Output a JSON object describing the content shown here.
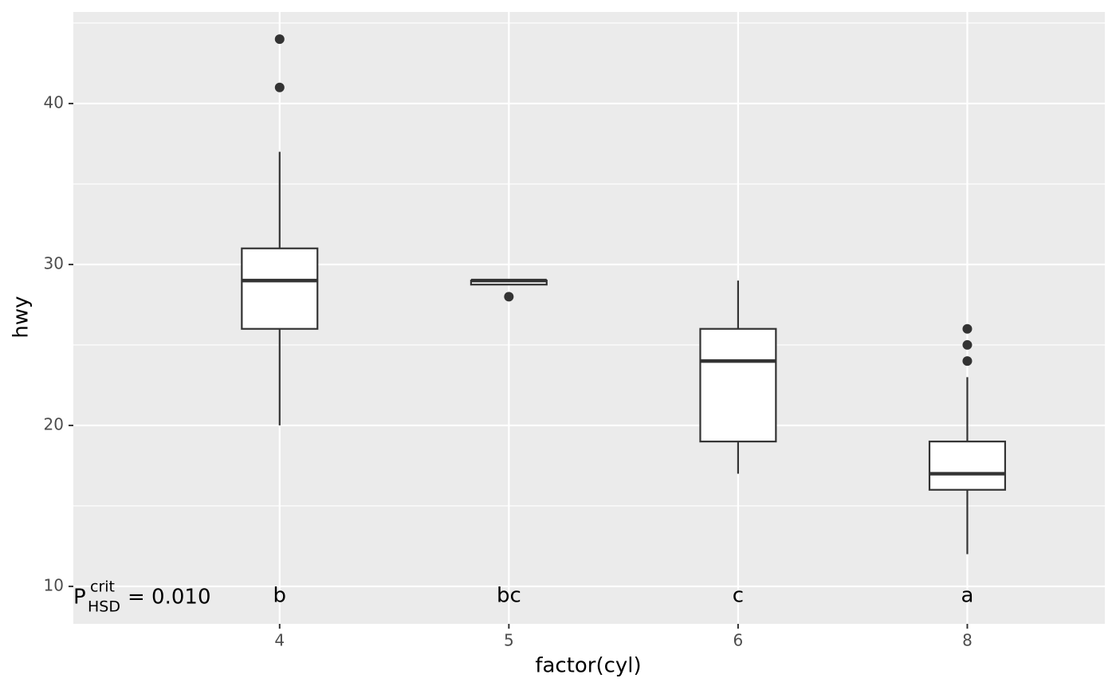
{
  "chart_data": {
    "type": "boxplot",
    "x_label": "factor(cyl)",
    "y_label": "hwy",
    "categories": [
      "4",
      "5",
      "6",
      "8"
    ],
    "boxes": [
      {
        "lower": 20,
        "q1": 26,
        "median": 29,
        "q3": 31,
        "upper": 37,
        "outliers": [
          41,
          44
        ]
      },
      {
        "lower": 29,
        "q1": 28.75,
        "median": 29,
        "q3": 29,
        "upper": 29,
        "outliers": [
          28
        ]
      },
      {
        "lower": 17,
        "q1": 19,
        "median": 24,
        "q3": 26,
        "upper": 29,
        "outliers": []
      },
      {
        "lower": 12,
        "q1": 16,
        "median": 17,
        "q3": 19,
        "upper": 23,
        "outliers": [
          24,
          25,
          26
        ]
      }
    ],
    "group_letters": [
      "b",
      "bc",
      "c",
      "a"
    ],
    "annotation": {
      "symbol": "P",
      "superscript": "crit",
      "subscript": "HSD",
      "text": "= 0.010"
    },
    "ylim": [
      7.67,
      45.69
    ],
    "yticks": [
      10,
      20,
      30,
      40
    ],
    "yminorticks": [
      15,
      25,
      35,
      45
    ],
    "grid": true,
    "box_color": "#333333",
    "box_fill": "#ffffff",
    "panel_color": "#ebebeb"
  }
}
